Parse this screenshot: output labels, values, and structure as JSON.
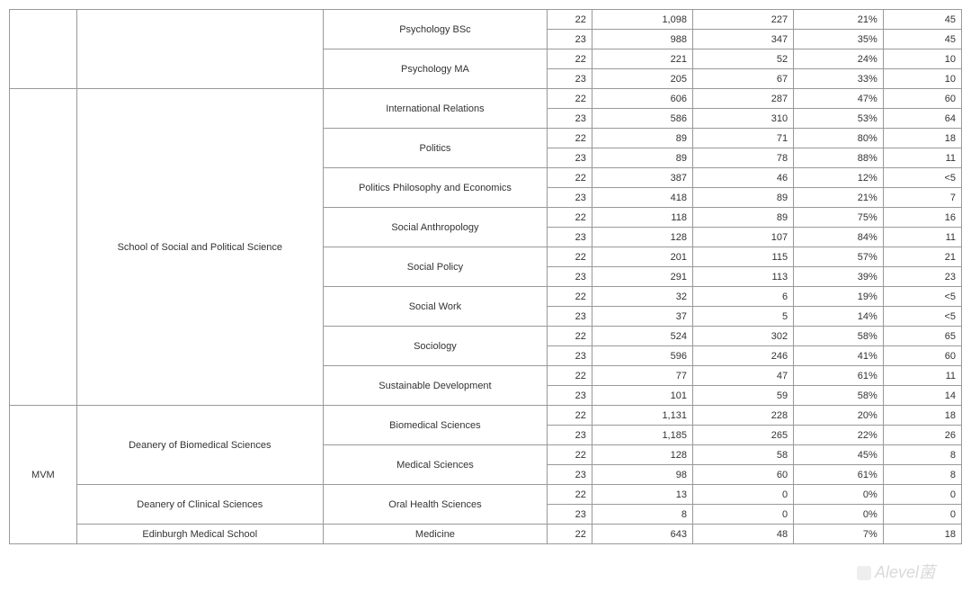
{
  "watermark": "Alevel菌",
  "table": {
    "rows": [
      {
        "c0": "",
        "c0rs": 4,
        "c1": "",
        "c1rs": 4,
        "c2": "Psychology BSc",
        "c2rs": 2,
        "c3": "22",
        "c4": "1,098",
        "c5": "227",
        "c6": "21%",
        "c7": "45"
      },
      {
        "c3": "23",
        "c4": "988",
        "c5": "347",
        "c6": "35%",
        "c7": "45"
      },
      {
        "c2": "Psychology MA",
        "c2rs": 2,
        "c3": "22",
        "c4": "221",
        "c5": "52",
        "c6": "24%",
        "c7": "10"
      },
      {
        "c3": "23",
        "c4": "205",
        "c5": "67",
        "c6": "33%",
        "c7": "10"
      },
      {
        "c0": "",
        "c0rs": 16,
        "c1": "School of Social and Political Science",
        "c1rs": 16,
        "c2": "International Relations",
        "c2rs": 2,
        "c3": "22",
        "c4": "606",
        "c5": "287",
        "c6": "47%",
        "c7": "60"
      },
      {
        "c3": "23",
        "c4": "586",
        "c5": "310",
        "c6": "53%",
        "c7": "64"
      },
      {
        "c2": "Politics",
        "c2rs": 2,
        "c3": "22",
        "c4": "89",
        "c5": "71",
        "c6": "80%",
        "c7": "18"
      },
      {
        "c3": "23",
        "c4": "89",
        "c5": "78",
        "c6": "88%",
        "c7": "11"
      },
      {
        "c2": "Politics Philosophy and Economics",
        "c2rs": 2,
        "c3": "22",
        "c4": "387",
        "c5": "46",
        "c6": "12%",
        "c7": "<5"
      },
      {
        "c3": "23",
        "c4": "418",
        "c5": "89",
        "c6": "21%",
        "c7": "7"
      },
      {
        "c2": "Social Anthropology",
        "c2rs": 2,
        "c3": "22",
        "c4": "118",
        "c5": "89",
        "c6": "75%",
        "c7": "16"
      },
      {
        "c3": "23",
        "c4": "128",
        "c5": "107",
        "c6": "84%",
        "c7": "11"
      },
      {
        "c2": "Social Policy",
        "c2rs": 2,
        "c3": "22",
        "c4": "201",
        "c5": "115",
        "c6": "57%",
        "c7": "21"
      },
      {
        "c3": "23",
        "c4": "291",
        "c5": "113",
        "c6": "39%",
        "c7": "23"
      },
      {
        "c2": "Social Work",
        "c2rs": 2,
        "c3": "22",
        "c4": "32",
        "c5": "6",
        "c6": "19%",
        "c7": "<5"
      },
      {
        "c3": "23",
        "c4": "37",
        "c5": "5",
        "c6": "14%",
        "c7": "<5"
      },
      {
        "c2": "Sociology",
        "c2rs": 2,
        "c3": "22",
        "c4": "524",
        "c5": "302",
        "c6": "58%",
        "c7": "65"
      },
      {
        "c3": "23",
        "c4": "596",
        "c5": "246",
        "c6": "41%",
        "c7": "60"
      },
      {
        "c2": "Sustainable Development",
        "c2rs": 2,
        "c3": "22",
        "c4": "77",
        "c5": "47",
        "c6": "61%",
        "c7": "11"
      },
      {
        "c3": "23",
        "c4": "101",
        "c5": "59",
        "c6": "58%",
        "c7": "14"
      },
      {
        "c0": "MVM",
        "c0rs": 7,
        "c1": "Deanery of Biomedical Sciences",
        "c1rs": 4,
        "c2": "Biomedical Sciences",
        "c2rs": 2,
        "c3": "22",
        "c4": "1,131",
        "c5": "228",
        "c6": "20%",
        "c7": "18"
      },
      {
        "c3": "23",
        "c4": "1,185",
        "c5": "265",
        "c6": "22%",
        "c7": "26"
      },
      {
        "c2": "Medical Sciences",
        "c2rs": 2,
        "c3": "22",
        "c4": "128",
        "c5": "58",
        "c6": "45%",
        "c7": "8"
      },
      {
        "c3": "23",
        "c4": "98",
        "c5": "60",
        "c6": "61%",
        "c7": "8"
      },
      {
        "c1": "Deanery of Clinical Sciences",
        "c1rs": 2,
        "c2": "Oral Health Sciences",
        "c2rs": 2,
        "c3": "22",
        "c4": "13",
        "c5": "0",
        "c6": "0%",
        "c7": "0"
      },
      {
        "c3": "23",
        "c4": "8",
        "c5": "0",
        "c6": "0%",
        "c7": "0"
      },
      {
        "c1": "Edinburgh Medical School",
        "c1rs": 1,
        "c2": "Medicine",
        "c2rs": 1,
        "c3": "22",
        "c4": "643",
        "c5": "48",
        "c6": "7%",
        "c7": "18"
      }
    ]
  }
}
